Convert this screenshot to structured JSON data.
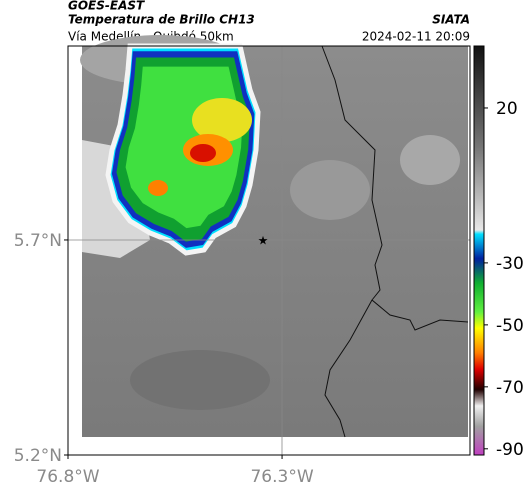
{
  "header": {
    "source": "GOES-EAST",
    "title": "Temperatura de Brillo CH13",
    "org": "SIATA",
    "subtitle": "Vía Medellín - Quibdó 50km",
    "datetime": "2024-02-11 20:09"
  },
  "map": {
    "xlim": [
      -76.8,
      -75.861
    ],
    "ylim": [
      5.2,
      6.151
    ],
    "xticks": [
      {
        "value": -76.8,
        "label": "76.8°W"
      },
      {
        "value": -76.3,
        "label": "76.3°W"
      }
    ],
    "yticks": [
      {
        "value": 5.7,
        "label": "5.7°N"
      },
      {
        "value": 5.2,
        "label": "5.2°N"
      }
    ]
  },
  "colorbar": {
    "lim": [
      -92,
      40
    ],
    "ticks": [
      20,
      -30,
      -50,
      -70,
      -90
    ]
  }
}
